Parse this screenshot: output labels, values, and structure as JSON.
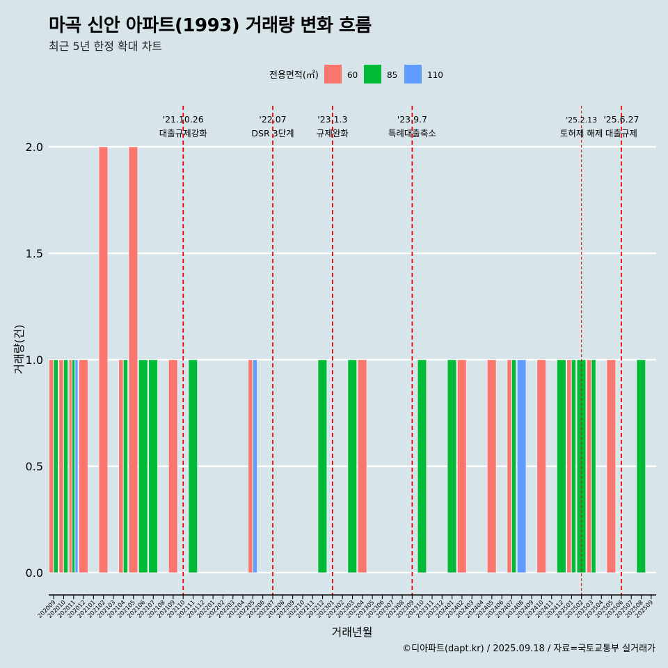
{
  "title": "마곡 신안 아파트(1993) 거래량 변화 흐름",
  "subtitle": "최근 5년 한정 확대 차트",
  "footer": "©디아파트(dapt.kr) / 2025.09.18 / 자료=국토교통부 실거래가",
  "chart_data": {
    "type": "bar",
    "xlabel": "거래년월",
    "ylabel": "거래량(건)",
    "ylim": [
      -0.08,
      2.2
    ],
    "yticks": [
      0.0,
      0.5,
      1.0,
      1.5,
      2.0
    ],
    "ytick_labels": [
      "0.0",
      "0.5",
      "1.0",
      "1.5",
      "2.0"
    ],
    "grid": true,
    "legend": {
      "title": "전용면적(㎡)",
      "placement": "top",
      "entries": [
        "60",
        "85",
        "110"
      ]
    },
    "series_colors": {
      "60": "#f8766d",
      "85": "#00ba38",
      "110": "#619cff"
    },
    "categories": [
      "202009",
      "202010",
      "202011",
      "202012",
      "202101",
      "202102",
      "202103",
      "202104",
      "202105",
      "202106",
      "202107",
      "202108",
      "202109",
      "202110",
      "202111",
      "202112",
      "202201",
      "202202",
      "202203",
      "202204",
      "202205",
      "202206",
      "202207",
      "202208",
      "202209",
      "202210",
      "202211",
      "202212",
      "202301",
      "202302",
      "202303",
      "202304",
      "202305",
      "202306",
      "202307",
      "202308",
      "202309",
      "202310",
      "202311",
      "202312",
      "202401",
      "202402",
      "202403",
      "202404",
      "202405",
      "202406",
      "202407",
      "202408",
      "202409",
      "202410",
      "202411",
      "202412",
      "202501",
      "202502",
      "202503",
      "202504",
      "202505",
      "202506",
      "202507",
      "202508",
      "202509"
    ],
    "bars": [
      {
        "month": "202009",
        "60": 1,
        "85": 1,
        "110": 0
      },
      {
        "month": "202010",
        "60": 1,
        "85": 1,
        "110": 0
      },
      {
        "month": "202011",
        "60": 1,
        "85": 1,
        "110": 1
      },
      {
        "month": "202012",
        "60": 1,
        "85": 0,
        "110": 0
      },
      {
        "month": "202102",
        "60": 2,
        "85": 0,
        "110": 0
      },
      {
        "month": "202104",
        "60": 1,
        "85": 1,
        "110": 0
      },
      {
        "month": "202105",
        "60": 2,
        "85": 0,
        "110": 0
      },
      {
        "month": "202106",
        "60": 0,
        "85": 1,
        "110": 0
      },
      {
        "month": "202107",
        "60": 0,
        "85": 1,
        "110": 0
      },
      {
        "month": "202109",
        "60": 1,
        "85": 0,
        "110": 0
      },
      {
        "month": "202111",
        "60": 0,
        "85": 1,
        "110": 0
      },
      {
        "month": "202205",
        "60": 1,
        "85": 0,
        "110": 1
      },
      {
        "month": "202212",
        "60": 0,
        "85": 1,
        "110": 0
      },
      {
        "month": "202303",
        "60": 0,
        "85": 1,
        "110": 0
      },
      {
        "month": "202304",
        "60": 1,
        "85": 0,
        "110": 0
      },
      {
        "month": "202310",
        "60": 0,
        "85": 1,
        "110": 0
      },
      {
        "month": "202401",
        "60": 0,
        "85": 1,
        "110": 0
      },
      {
        "month": "202402",
        "60": 1,
        "85": 0,
        "110": 0
      },
      {
        "month": "202405",
        "60": 1,
        "85": 0,
        "110": 0
      },
      {
        "month": "202407",
        "60": 1,
        "85": 1,
        "110": 0
      },
      {
        "month": "202408",
        "60": 0,
        "85": 0,
        "110": 1
      },
      {
        "month": "202410",
        "60": 1,
        "85": 0,
        "110": 0
      },
      {
        "month": "202412",
        "60": 0,
        "85": 1,
        "110": 0
      },
      {
        "month": "202501",
        "60": 1,
        "85": 1,
        "110": 0
      },
      {
        "month": "202502",
        "60": 0,
        "85": 1,
        "110": 0
      },
      {
        "month": "202503",
        "60": 1,
        "85": 1,
        "110": 0
      },
      {
        "month": "202505",
        "60": 1,
        "85": 0,
        "110": 0
      },
      {
        "month": "202508",
        "60": 0,
        "85": 1,
        "110": 0
      }
    ],
    "annotations": [
      {
        "month": "202110",
        "date": "'21.10.26",
        "label": "대출규제강화",
        "style": "bold"
      },
      {
        "month": "202207",
        "date": "'22.07",
        "label": "DSR 3단계",
        "style": "bold"
      },
      {
        "month": "202301",
        "date": "'23.1.3",
        "label": "규제완화",
        "style": "bold"
      },
      {
        "month": "202309",
        "date": "'23.9.7",
        "label": "특례대출축소",
        "style": "bold"
      },
      {
        "month": "202502",
        "date": "'25.2.13",
        "label": "토허제 해제",
        "style": "thin"
      },
      {
        "month": "202506",
        "date": "'25.6.27",
        "label": "대출규제",
        "style": "bold"
      }
    ]
  }
}
